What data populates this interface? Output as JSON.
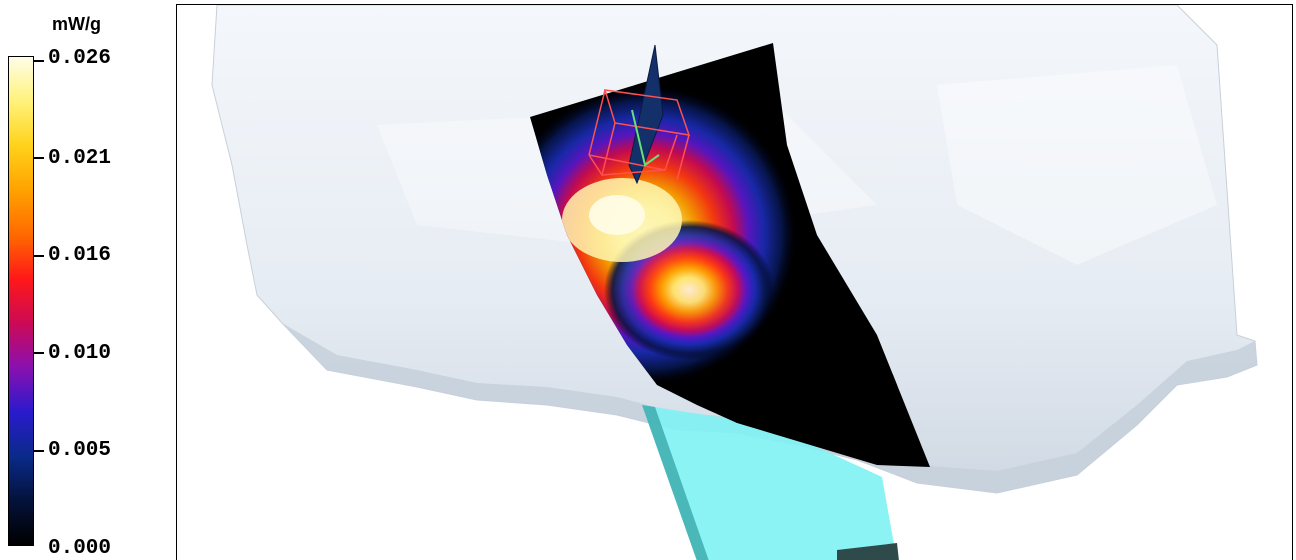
{
  "legend": {
    "unit": "mW/g",
    "ticks": [
      {
        "label": "0.026",
        "value": 0.026
      },
      {
        "label": "0.021",
        "value": 0.021
      },
      {
        "label": "0.016",
        "value": 0.016
      },
      {
        "label": "0.010",
        "value": 0.01
      },
      {
        "label": "0.005",
        "value": 0.005
      },
      {
        "label": "0.000",
        "value": 0.0
      }
    ],
    "colormap": [
      "#000000",
      "#04123a",
      "#0a2a8a",
      "#2a1acc",
      "#8a10b0",
      "#cc0a55",
      "#ff1818",
      "#ff6a00",
      "#ffa200",
      "#ffd21a",
      "#fff27a",
      "#fffde8"
    ]
  },
  "scene": {
    "head_color": "#dfe6ef",
    "phone_color": "#7ff2f4",
    "probe_box_color": "#ff5050",
    "probe_axis_color": "#66e07a"
  }
}
